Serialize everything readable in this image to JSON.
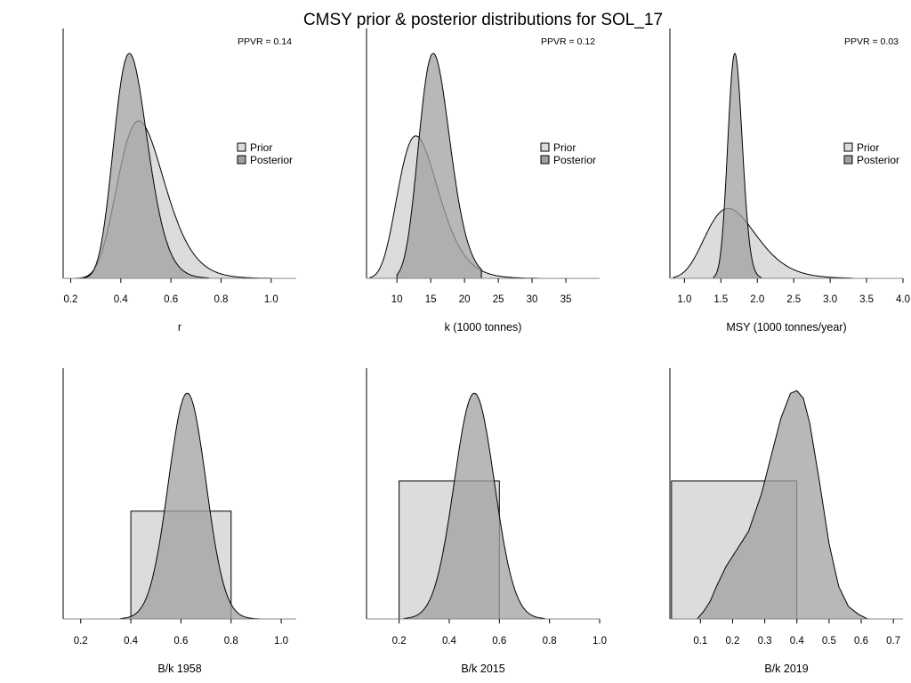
{
  "title": "CMSY prior & posterior distributions for SOL_17",
  "colors": {
    "prior": "#dcdcdc",
    "posterior": "#a0a0a0",
    "stroke": "#000000",
    "axis": "#000000"
  },
  "chart_data": [
    {
      "type": "area",
      "xlabel": "r",
      "xlim": [
        0.17,
        1.1
      ],
      "ticks": [
        0.2,
        0.4,
        0.6,
        0.8,
        1.0
      ],
      "tick_labels": [
        "0.2",
        "0.4",
        "0.6",
        "0.8",
        "1.0"
      ],
      "ppvr": "PPVR = 0.14",
      "legend": [
        "Prior",
        "Posterior"
      ],
      "legend_position": "right",
      "series": [
        {
          "name": "Prior",
          "dist": "lognormal",
          "mean": 0.5,
          "sd": 0.1,
          "peak": 0.63,
          "support": [
            0.22,
            1.0
          ]
        },
        {
          "name": "Posterior",
          "dist": "lognormal",
          "mean": 0.45,
          "sd": 0.07,
          "peak": 0.9,
          "support": [
            0.23,
            0.75
          ]
        }
      ]
    },
    {
      "type": "area",
      "xlabel": "k (1000 tonnes)",
      "xlim": [
        5.5,
        40
      ],
      "ticks": [
        10,
        15,
        20,
        25,
        30,
        35
      ],
      "tick_labels": [
        "10",
        "15",
        "20",
        "25",
        "30",
        "35"
      ],
      "ppvr": "PPVR = 0.12",
      "legend": [
        "Prior",
        "Posterior"
      ],
      "legend_position": "right",
      "series": [
        {
          "name": "Prior",
          "dist": "lognormal",
          "mean": 13.9,
          "sd": 3.3,
          "peak": 0.57,
          "support": [
            6.0,
            31.0
          ]
        },
        {
          "name": "Posterior",
          "dist": "lognormal",
          "mean": 15.9,
          "sd": 2.4,
          "peak": 0.9,
          "support": [
            10.0,
            22.5
          ]
        }
      ]
    },
    {
      "type": "area",
      "xlabel": "MSY (1000 tonnes/year)",
      "xlim": [
        0.8,
        4.0
      ],
      "ticks": [
        1.0,
        1.5,
        2.0,
        2.5,
        3.0,
        3.5,
        4.0
      ],
      "tick_labels": [
        "1.0",
        "1.5",
        "2.0",
        "2.5",
        "3.0",
        "3.5",
        "4.0"
      ],
      "ppvr": "PPVR = 0.03",
      "legend": [
        "Prior",
        "Posterior"
      ],
      "legend_position": "right",
      "series": [
        {
          "name": "Prior",
          "dist": "lognormal",
          "mean": 1.72,
          "sd": 0.38,
          "peak": 0.28,
          "support": [
            0.85,
            3.3
          ]
        },
        {
          "name": "Posterior",
          "dist": "lognormal",
          "mean": 1.7,
          "sd": 0.1,
          "peak": 0.9,
          "support": [
            1.4,
            2.05
          ]
        }
      ]
    },
    {
      "type": "area",
      "xlabel": "B/k 1958",
      "xlim": [
        0.13,
        1.06
      ],
      "ticks": [
        0.2,
        0.4,
        0.6,
        0.8,
        1.0
      ],
      "tick_labels": [
        "0.2",
        "0.4",
        "0.6",
        "0.8",
        "1.0"
      ],
      "series": [
        {
          "name": "Prior",
          "dist": "uniform",
          "range": [
            0.4,
            0.8
          ],
          "peak": 0.43
        },
        {
          "name": "Posterior",
          "dist": "normal",
          "mean": 0.625,
          "sd": 0.075,
          "peak": 0.9,
          "support": [
            0.36,
            0.91
          ]
        }
      ]
    },
    {
      "type": "area",
      "xlabel": "B/k 2015",
      "xlim": [
        0.07,
        1.0
      ],
      "ticks": [
        0.2,
        0.4,
        0.6,
        0.8,
        1.0
      ],
      "tick_labels": [
        "0.2",
        "0.4",
        "0.6",
        "0.8",
        "1.0"
      ],
      "series": [
        {
          "name": "Prior",
          "dist": "uniform",
          "range": [
            0.2,
            0.6
          ],
          "peak": 0.55
        },
        {
          "name": "Posterior",
          "dist": "normal",
          "mean": 0.5,
          "sd": 0.08,
          "peak": 0.9,
          "support": [
            0.22,
            0.78
          ]
        }
      ]
    },
    {
      "type": "area",
      "xlabel": "B/k 2019",
      "xlim": [
        0.005,
        0.73
      ],
      "ticks": [
        0.1,
        0.2,
        0.3,
        0.4,
        0.5,
        0.6,
        0.7
      ],
      "tick_labels": [
        "0.1",
        "0.2",
        "0.3",
        "0.4",
        "0.5",
        "0.6",
        "0.7"
      ],
      "series": [
        {
          "name": "Prior",
          "dist": "uniform",
          "range": [
            0.01,
            0.4
          ],
          "peak": 0.55
        },
        {
          "name": "Posterior",
          "dist": "custom",
          "x": [
            0.09,
            0.11,
            0.13,
            0.15,
            0.18,
            0.21,
            0.25,
            0.29,
            0.32,
            0.35,
            0.38,
            0.4,
            0.42,
            0.44,
            0.47,
            0.5,
            0.53,
            0.56,
            0.59,
            0.62
          ],
          "y": [
            0,
            0.03,
            0.07,
            0.13,
            0.21,
            0.27,
            0.35,
            0.5,
            0.65,
            0.8,
            0.9,
            0.91,
            0.88,
            0.78,
            0.55,
            0.3,
            0.13,
            0.05,
            0.02,
            0
          ]
        }
      ]
    }
  ]
}
